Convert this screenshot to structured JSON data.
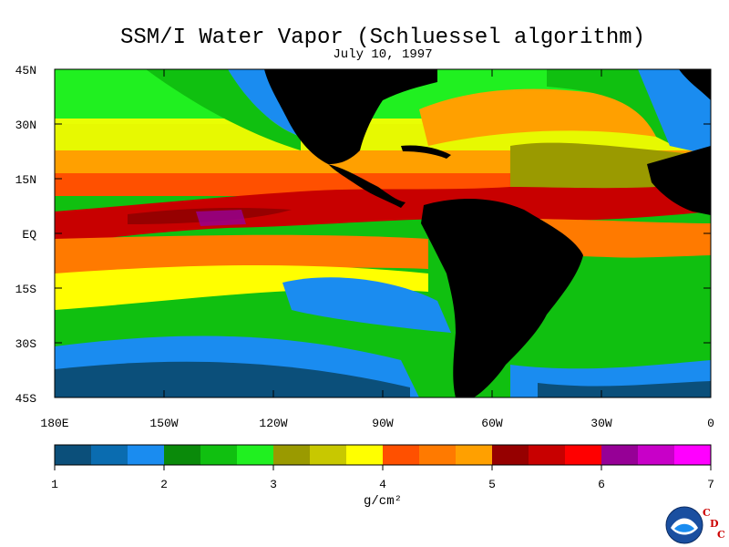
{
  "title": "SSM/I Water Vapor (Schluessel algorithm)",
  "subtitle": "July 10, 1997",
  "lat_labels": [
    "45N",
    "30N",
    "15N",
    "EQ",
    "15S",
    "30S",
    "45S"
  ],
  "lon_labels": [
    "180E",
    "150W",
    "120W",
    "90W",
    "60W",
    "30W",
    "0"
  ],
  "colorbar": {
    "colors": [
      "#0b4f7a",
      "#0a6cb0",
      "#1a8cf0",
      "#0a8a0a",
      "#10c010",
      "#20f020",
      "#9a9a00",
      "#c8c800",
      "#ffff00",
      "#ff5000",
      "#ff7a00",
      "#ffa000",
      "#960000",
      "#c80000",
      "#ff0000",
      "#960096",
      "#c800c8",
      "#ff00ff"
    ],
    "tick_labels": [
      "1",
      "2",
      "3",
      "4",
      "5",
      "6",
      "7"
    ],
    "unit": "g/cm²"
  },
  "legend": {
    "land": "#000000"
  },
  "logo": {
    "icon": "noaa-logo-icon",
    "text": "NOAA",
    "org_letters": [
      "C",
      "D",
      "C"
    ]
  }
}
